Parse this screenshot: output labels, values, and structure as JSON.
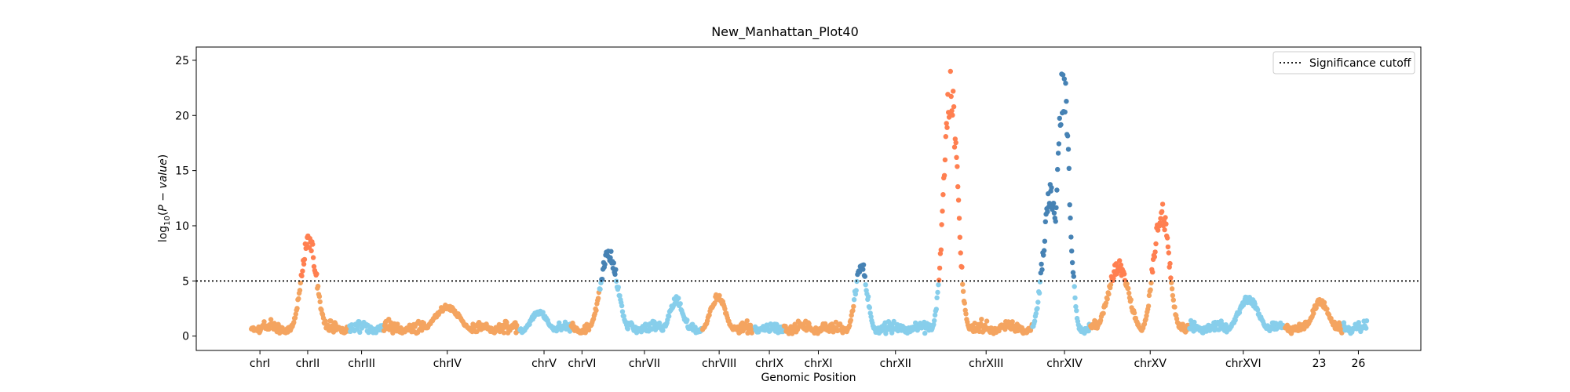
{
  "chart_data": {
    "type": "scatter",
    "title": "New_Manhattan_Plot40",
    "xlabel": "Genomic Position",
    "ylabel": "log10(P − value)",
    "ylim": [
      -1.3,
      26.2
    ],
    "yticks": [
      0,
      5,
      10,
      15,
      20,
      25
    ],
    "threshold": 5,
    "legend": {
      "label": "Significance cutoff",
      "position": "top-right",
      "style": "dotted"
    },
    "grid": false,
    "colors": {
      "skyblue": "#87ceeb",
      "sandybrown": "#f4a460",
      "coral": "#ff7f50",
      "steelblue": "#4682b4"
    },
    "xlim": [
      0,
      100
    ],
    "chromosomes": [
      {
        "name": "chrI",
        "start": 0.0,
        "end": 4.5,
        "label_pos": 5.2,
        "color": "skyblue"
      },
      {
        "name": "chrII",
        "start": 4.5,
        "end": 12.5,
        "label_pos": 9.1,
        "color": "sandybrown"
      },
      {
        "name": "chrIII",
        "start": 12.5,
        "end": 15.3,
        "label_pos": 13.5,
        "color": "skyblue"
      },
      {
        "name": "chrIV",
        "start": 15.3,
        "end": 26.4,
        "label_pos": 20.5,
        "color": "sandybrown"
      },
      {
        "name": "chrV",
        "start": 26.4,
        "end": 30.6,
        "label_pos": 28.4,
        "color": "skyblue"
      },
      {
        "name": "chrVI",
        "start": 30.6,
        "end": 32.9,
        "label_pos": 31.5,
        "color": "sandybrown"
      },
      {
        "name": "chrVII",
        "start": 32.9,
        "end": 41.3,
        "label_pos": 36.6,
        "color": "skyblue"
      },
      {
        "name": "chrVIII",
        "start": 41.3,
        "end": 45.6,
        "label_pos": 42.7,
        "color": "sandybrown"
      },
      {
        "name": "chrIX",
        "start": 45.6,
        "end": 48.0,
        "label_pos": 46.8,
        "color": "skyblue"
      },
      {
        "name": "chrXI",
        "start": 48.0,
        "end": 53.7,
        "label_pos": 50.8,
        "color": "sandybrown"
      },
      {
        "name": "chrXII",
        "start": 53.7,
        "end": 61.7,
        "label_pos": 57.1,
        "color": "skyblue"
      },
      {
        "name": "chrXIII",
        "start": 61.7,
        "end": 68.3,
        "label_pos": 64.5,
        "color": "sandybrown"
      },
      {
        "name": "chrXIV",
        "start": 68.3,
        "end": 73.0,
        "label_pos": 70.9,
        "color": "skyblue"
      },
      {
        "name": "chrXV",
        "start": 73.0,
        "end": 81.1,
        "label_pos": 77.9,
        "color": "sandybrown"
      },
      {
        "name": "chrXVI",
        "start": 81.1,
        "end": 88.9,
        "label_pos": 85.5,
        "color": "skyblue"
      },
      {
        "name": "23",
        "start": 88.9,
        "end": 93.7,
        "label_pos": 91.7,
        "color": "sandybrown"
      },
      {
        "name": "26",
        "start": 93.7,
        "end": 95.6,
        "label_pos": 94.9,
        "color": "skyblue"
      }
    ],
    "peaks": [
      {
        "x": 9.2,
        "y": 9.5,
        "width": 0.9,
        "color": "coral"
      },
      {
        "x": 20.5,
        "y": 2.9,
        "width": 1.5,
        "color": "sandybrown"
      },
      {
        "x": 28.0,
        "y": 2.4,
        "width": 1.0,
        "color": "skyblue"
      },
      {
        "x": 33.7,
        "y": 8.3,
        "width": 1.0,
        "color": "steelblue"
      },
      {
        "x": 39.2,
        "y": 3.6,
        "width": 0.8,
        "color": "skyblue"
      },
      {
        "x": 42.6,
        "y": 3.9,
        "width": 0.9,
        "color": "sandybrown"
      },
      {
        "x": 54.3,
        "y": 7.1,
        "width": 0.7,
        "color": "steelblue"
      },
      {
        "x": 61.6,
        "y": 24.4,
        "width": 0.8,
        "color": "coral"
      },
      {
        "x": 69.8,
        "y": 14.0,
        "width": 0.9,
        "color": "steelblue"
      },
      {
        "x": 70.8,
        "y": 24.8,
        "width": 0.7,
        "color": "steelblue"
      },
      {
        "x": 75.3,
        "y": 6.9,
        "width": 1.2,
        "color": "coral"
      },
      {
        "x": 78.8,
        "y": 12.5,
        "width": 0.9,
        "color": "coral"
      },
      {
        "x": 85.9,
        "y": 3.7,
        "width": 1.2,
        "color": "skyblue"
      },
      {
        "x": 91.8,
        "y": 3.4,
        "width": 1.0,
        "color": "sandybrown"
      }
    ]
  }
}
